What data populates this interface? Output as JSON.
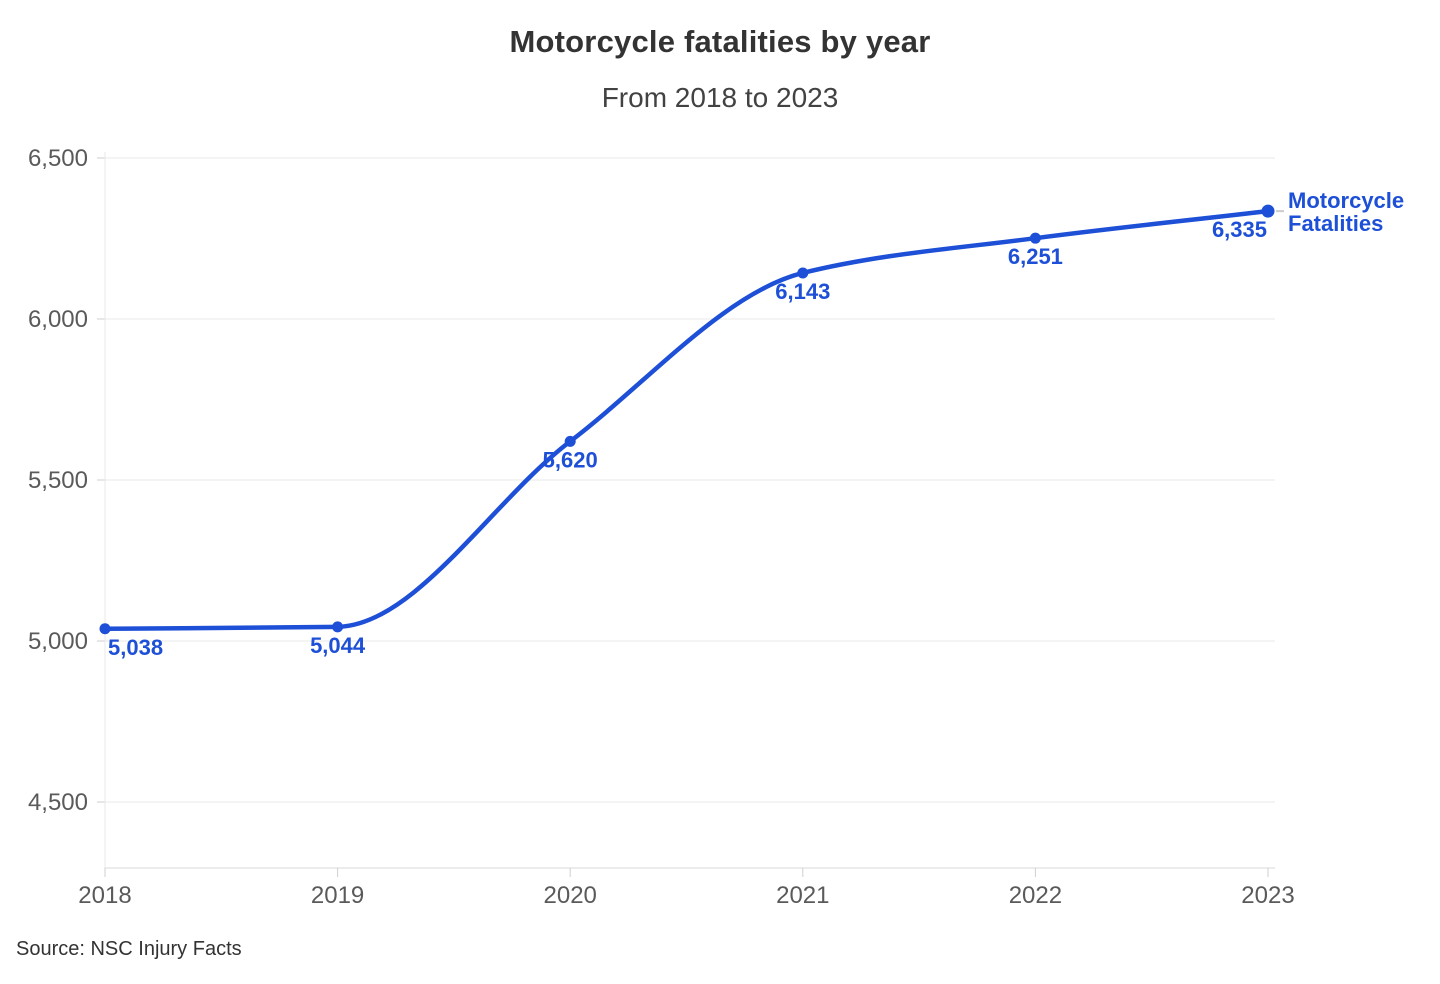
{
  "chart_data": {
    "type": "line",
    "title": "Motorcycle fatalities by year",
    "subtitle": "From 2018 to 2023",
    "source": "Source: NSC Injury Facts",
    "x": [
      2018,
      2019,
      2020,
      2021,
      2022,
      2023
    ],
    "xtick_labels": [
      "2018",
      "2019",
      "2020",
      "2021",
      "2022",
      "2023"
    ],
    "series": [
      {
        "name": "Motorcycle Fatalities",
        "values": [
          5038,
          5044,
          5620,
          6143,
          6251,
          6335
        ],
        "color": "#1d4fd7"
      }
    ],
    "data_labels": [
      "5,038",
      "5,044",
      "5,620",
      "6,143",
      "6,251",
      "6,335"
    ],
    "ylim": [
      4500,
      6500
    ],
    "yticks": [
      4500,
      5000,
      5500,
      6000,
      6500
    ],
    "ytick_labels": [
      "4,500",
      "5,000",
      "5,500",
      "6,000",
      "6,500"
    ],
    "grid": "horizontal",
    "legend": {
      "lines": [
        "Motorcycle",
        "Fatalities"
      ],
      "position": "right-of-last-point",
      "color": "#1d4fd7"
    },
    "colors": {
      "line": "#1d4fd7",
      "point": "#1d4fd7",
      "data_label": "#1d4fd7",
      "axis_text": "#5a5a5a",
      "grid": "#e9e9e9",
      "axis_line": "#d9d9d9",
      "tick": "#cfcfcf",
      "connector": "#cccccc"
    }
  }
}
